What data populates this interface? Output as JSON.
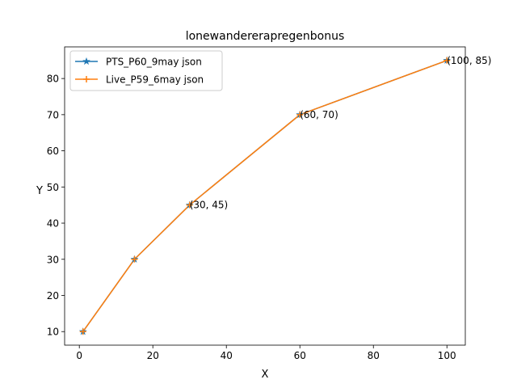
{
  "chart_data": {
    "type": "line",
    "title": "lonewandererapregenbonus",
    "xlabel": "X",
    "ylabel": "Y",
    "xlim": [
      -4,
      105
    ],
    "ylim": [
      6.25,
      88.75
    ],
    "xticks": [
      0,
      20,
      40,
      60,
      80,
      100
    ],
    "yticks": [
      10,
      20,
      30,
      40,
      50,
      60,
      70,
      80
    ],
    "legend_position": "upper-left",
    "grid": false,
    "series": [
      {
        "name": "PTS_P60_9may json",
        "color": "#1f77b4",
        "marker": "star",
        "x": [
          1,
          15,
          30,
          60,
          100
        ],
        "y": [
          10,
          30,
          45,
          70,
          85
        ]
      },
      {
        "name": "Live_P59_6may json",
        "color": "#ff7f0e",
        "marker": "plus",
        "x": [
          1,
          15,
          30,
          60,
          100
        ],
        "y": [
          10,
          30,
          45,
          70,
          85
        ]
      }
    ],
    "annotations": [
      {
        "text": "(30, 45)",
        "x": 30,
        "y": 45
      },
      {
        "text": "(60, 70)",
        "x": 60,
        "y": 70
      },
      {
        "text": "(100, 85)",
        "x": 100,
        "y": 85
      }
    ]
  }
}
